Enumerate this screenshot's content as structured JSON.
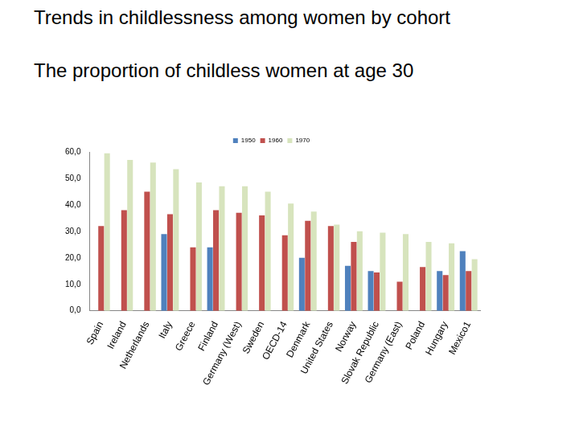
{
  "chart_data": {
    "type": "bar",
    "title": "Trends in childlessness among women by cohort",
    "subtitle": "The proportion of childless women at age 30",
    "categories": [
      "Spain",
      "Ireland",
      "Netherlands",
      "Italy",
      "Greece",
      "Finland",
      "Germany (West)",
      "Sweden",
      "OECD-14",
      "Denmark",
      "United States",
      "Norway",
      "Slovak Republic",
      "Germany (East)",
      "Poland",
      "Hungary",
      "Mexico1"
    ],
    "series": [
      {
        "name": "1950",
        "color": "#4f81bd",
        "values": [
          null,
          null,
          null,
          29,
          null,
          24,
          null,
          null,
          null,
          20,
          null,
          17,
          15,
          null,
          null,
          15,
          22.5
        ]
      },
      {
        "name": "1960",
        "color": "#c0504d",
        "values": [
          32,
          38,
          45,
          36.5,
          24,
          38,
          37,
          36,
          28.5,
          34,
          32,
          26,
          14.5,
          11,
          16.5,
          13.5,
          15
        ]
      },
      {
        "name": "1970",
        "color": "#d7e4bd",
        "values": [
          59.5,
          57,
          56,
          53.5,
          48.5,
          47,
          47,
          45,
          40.5,
          37.5,
          32.5,
          30,
          29.5,
          29,
          26,
          25.5,
          19.5
        ]
      }
    ],
    "ylim": [
      0,
      60
    ],
    "yticks": [
      {
        "value": 0,
        "label": "0,0"
      },
      {
        "value": 10,
        "label": "10,0"
      },
      {
        "value": 20,
        "label": "20,0"
      },
      {
        "value": 30,
        "label": "30,0"
      },
      {
        "value": 40,
        "label": "40,0"
      },
      {
        "value": 50,
        "label": "50,0"
      },
      {
        "value": 60,
        "label": "60,0"
      }
    ],
    "grid": false,
    "legend": "top"
  }
}
